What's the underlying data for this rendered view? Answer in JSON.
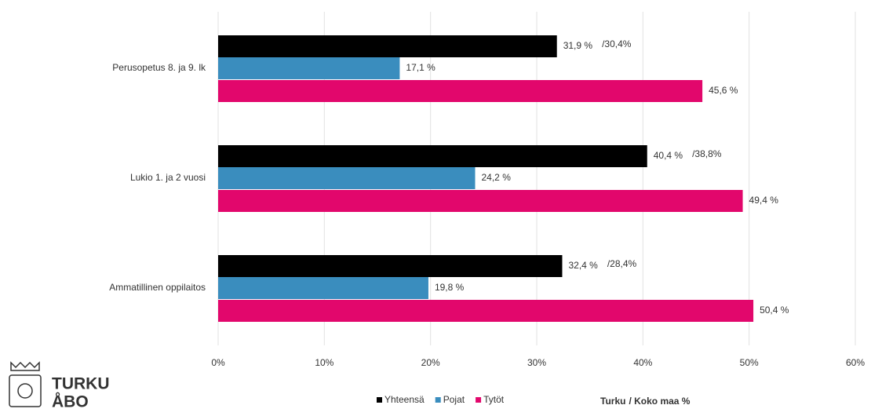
{
  "chart_data": {
    "type": "hbar",
    "categories": [
      "Perusopetus 8. ja 9. lk",
      "Lukio 1. ja 2 vuosi",
      "Ammatillinen oppilaitos"
    ],
    "series": [
      {
        "name": "Yhteensä",
        "color": "#000000",
        "values": [
          31.9,
          40.4,
          32.4
        ],
        "value_labels": [
          "31,9 %",
          "40,4 %",
          "32,4 %"
        ]
      },
      {
        "name": "Pojat",
        "color": "#3a8dbe",
        "values": [
          17.1,
          24.2,
          19.8
        ],
        "value_labels": [
          "17,1 %",
          "24,2 %",
          "19,8 %"
        ]
      },
      {
        "name": "Tytöt",
        "color": "#e2076c",
        "values": [
          45.6,
          49.4,
          50.4
        ],
        "value_labels": [
          "45,6 %",
          "49,4 %",
          "50,4 %"
        ]
      }
    ],
    "annotations": [
      "/30,4%",
      "/38,8%",
      "/28,4%"
    ],
    "annotation_color": "#1db954",
    "xlim": [
      0,
      60
    ],
    "xticks": [
      {
        "value": 0,
        "label": "0%"
      },
      {
        "value": 10,
        "label": "10%"
      },
      {
        "value": 20,
        "label": "20%"
      },
      {
        "value": 30,
        "label": "30%"
      },
      {
        "value": 40,
        "label": "40%"
      },
      {
        "value": 50,
        "label": "50%"
      },
      {
        "value": 60,
        "label": "60%"
      }
    ],
    "grid": true,
    "note": [
      "Turku",
      "/ Koko maa %"
    ],
    "logo": [
      "TURKU",
      "ÅBO"
    ]
  }
}
